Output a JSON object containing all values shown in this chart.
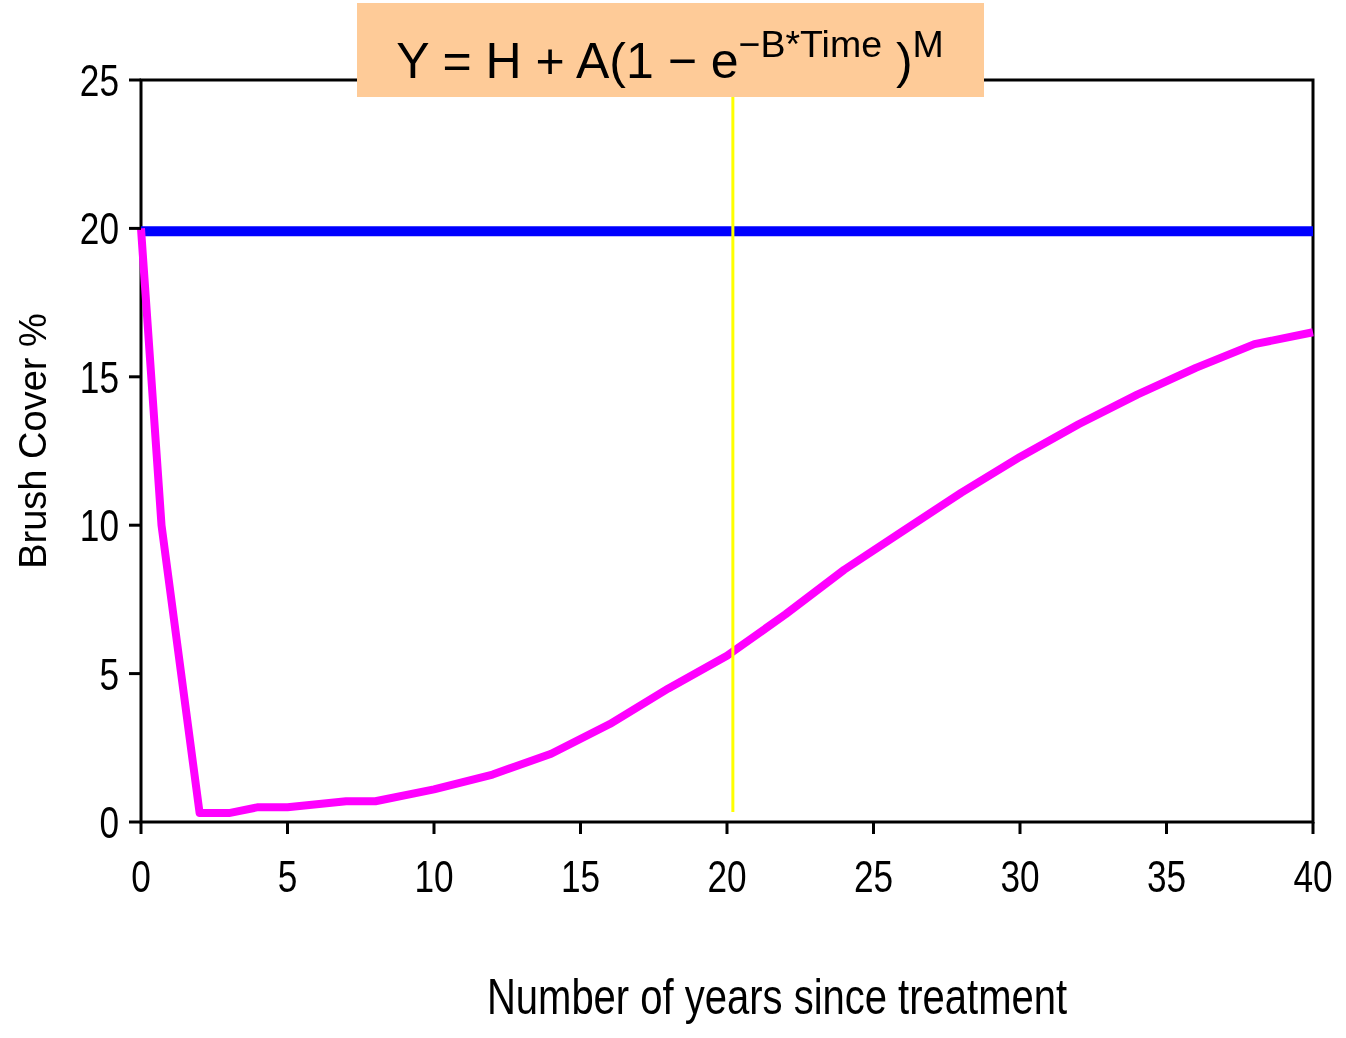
{
  "chart_data": {
    "type": "line",
    "title": "Y = H + A(1 − e$^{−B*Time}$ )$^{M}$",
    "xlabel": "Number of years since treatment",
    "ylabel": "Brush Cover %",
    "xlim": [
      0,
      40
    ],
    "xticks": [
      0,
      5,
      10,
      15,
      20,
      25,
      30,
      35,
      40
    ],
    "ylim": [
      0,
      25
    ],
    "yticks": [
      0,
      5,
      10,
      15,
      20,
      25
    ],
    "grid": false,
    "marker": "none",
    "line_style": "solid",
    "series": [
      {
        "color": "#ff00ff",
        "x": [
          0,
          0.7,
          2,
          3,
          4,
          5,
          7,
          8,
          10,
          12,
          14,
          16,
          18,
          20,
          22,
          24,
          26,
          28,
          30,
          32,
          34,
          36,
          38,
          40
        ],
        "values": [
          20,
          10,
          0.3,
          0.3,
          0.5,
          0.5,
          0.7,
          0.7,
          1.1,
          1.6,
          2.3,
          3.3,
          4.5,
          5.6,
          7,
          8.5,
          9.8,
          11.1,
          12.3,
          13.4,
          14.4,
          15.3,
          16.1,
          16.5
        ]
      }
    ],
    "ref_lines": [
      {
        "axis": "y",
        "value": 19.9,
        "color": "#0000ff",
        "line_style": "solid"
      },
      {
        "axis": "x",
        "value": 20.2,
        "color": "#ffff00",
        "line_style": "solid"
      }
    ]
  }
}
